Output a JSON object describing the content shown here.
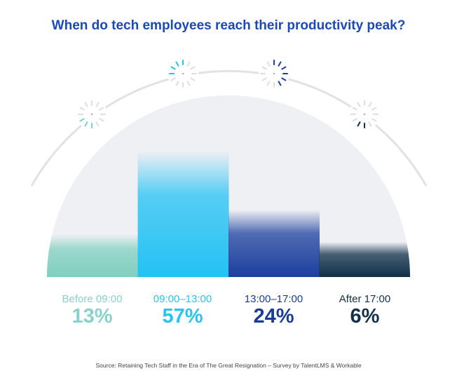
{
  "title": "When do tech employees reach their productivity peak?",
  "source": "Source: Retaining Tech Staff in the Era of The Great Resignation – Survey by TalentLMS & Workable",
  "chart_data": {
    "type": "bar",
    "title": "When do tech employees reach their productivity peak?",
    "categories": [
      "Before 09:00",
      "09:00–13:00",
      "13:00–17:00",
      "After 17:00"
    ],
    "values": [
      13,
      57,
      24,
      6
    ],
    "value_labels": [
      "13%",
      "57%",
      "24%",
      "6%"
    ],
    "unit": "%",
    "colors": [
      "#7fcfc0",
      "#23c2f4",
      "#1c3f9e",
      "#0f2f48"
    ],
    "label_colors": [
      "#8ad0cb",
      "#29c3f2",
      "#1a3c96",
      "#12304a"
    ],
    "ylim": [
      0,
      60
    ],
    "grid": false,
    "legend": "none"
  }
}
